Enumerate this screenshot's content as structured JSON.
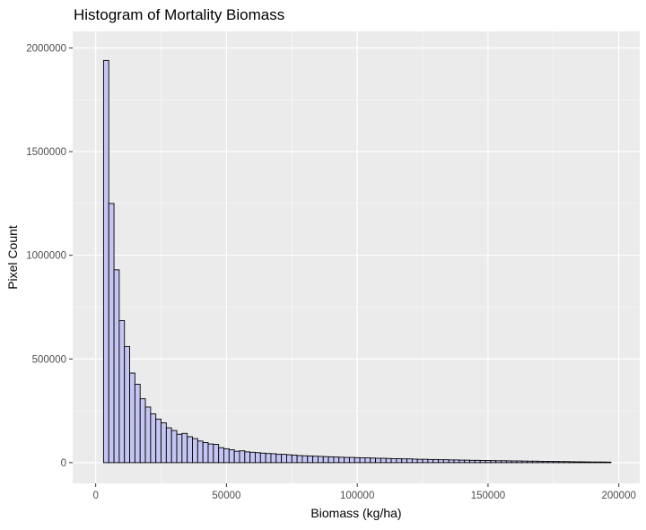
{
  "chart_data": {
    "type": "bar",
    "title": "Histogram of Mortality Biomass",
    "xlabel": "Biomass (kg/ha)",
    "ylabel": "Pixel Count",
    "xlim": [
      -8800,
      208000
    ],
    "ylim": [
      -100000,
      2080000
    ],
    "grid": true,
    "legend": "none",
    "bin_width": 2000,
    "bin_start": 3000,
    "x_ticks": [
      0,
      50000,
      100000,
      150000,
      200000
    ],
    "x_tick_labels": [
      "0",
      "50000",
      "100000",
      "150000",
      "200000"
    ],
    "y_ticks": [
      0,
      500000,
      1000000,
      1500000,
      2000000
    ],
    "y_tick_labels": [
      "0",
      "500000",
      "1000000",
      "1500000",
      "2000000"
    ],
    "colors": {
      "panel": "#ebebeb",
      "grid_major": "#ffffff",
      "bar_fill": "#c5c5f4",
      "bar_outline": "#000000",
      "tick_text": "#4d4d4d"
    },
    "values": [
      1940000,
      1250000,
      930000,
      685000,
      560000,
      432000,
      378000,
      308000,
      268000,
      235000,
      210000,
      192000,
      168000,
      155000,
      137000,
      141000,
      125000,
      116000,
      104000,
      97000,
      90000,
      88000,
      72000,
      67000,
      62000,
      55000,
      57000,
      52000,
      50000,
      48000,
      46000,
      44000,
      43000,
      40000,
      40000,
      38000,
      36000,
      34000,
      33000,
      32000,
      31000,
      30000,
      29000,
      28000,
      27000,
      26000,
      25000,
      25000,
      24000,
      23000,
      23000,
      22000,
      21000,
      21000,
      20000,
      19000,
      19000,
      18000,
      18000,
      17000,
      16000,
      16000,
      15000,
      15000,
      14000,
      14000,
      13000,
      13000,
      12000,
      12000,
      11000,
      11000,
      10000,
      10000,
      9500,
      9000,
      9000,
      8500,
      8000,
      8000,
      7500,
      7000,
      7000,
      6500,
      6000,
      6000,
      5500,
      5000,
      5000,
      4500,
      4000,
      4000,
      3500,
      3000,
      3000,
      3000,
      2500
    ]
  }
}
